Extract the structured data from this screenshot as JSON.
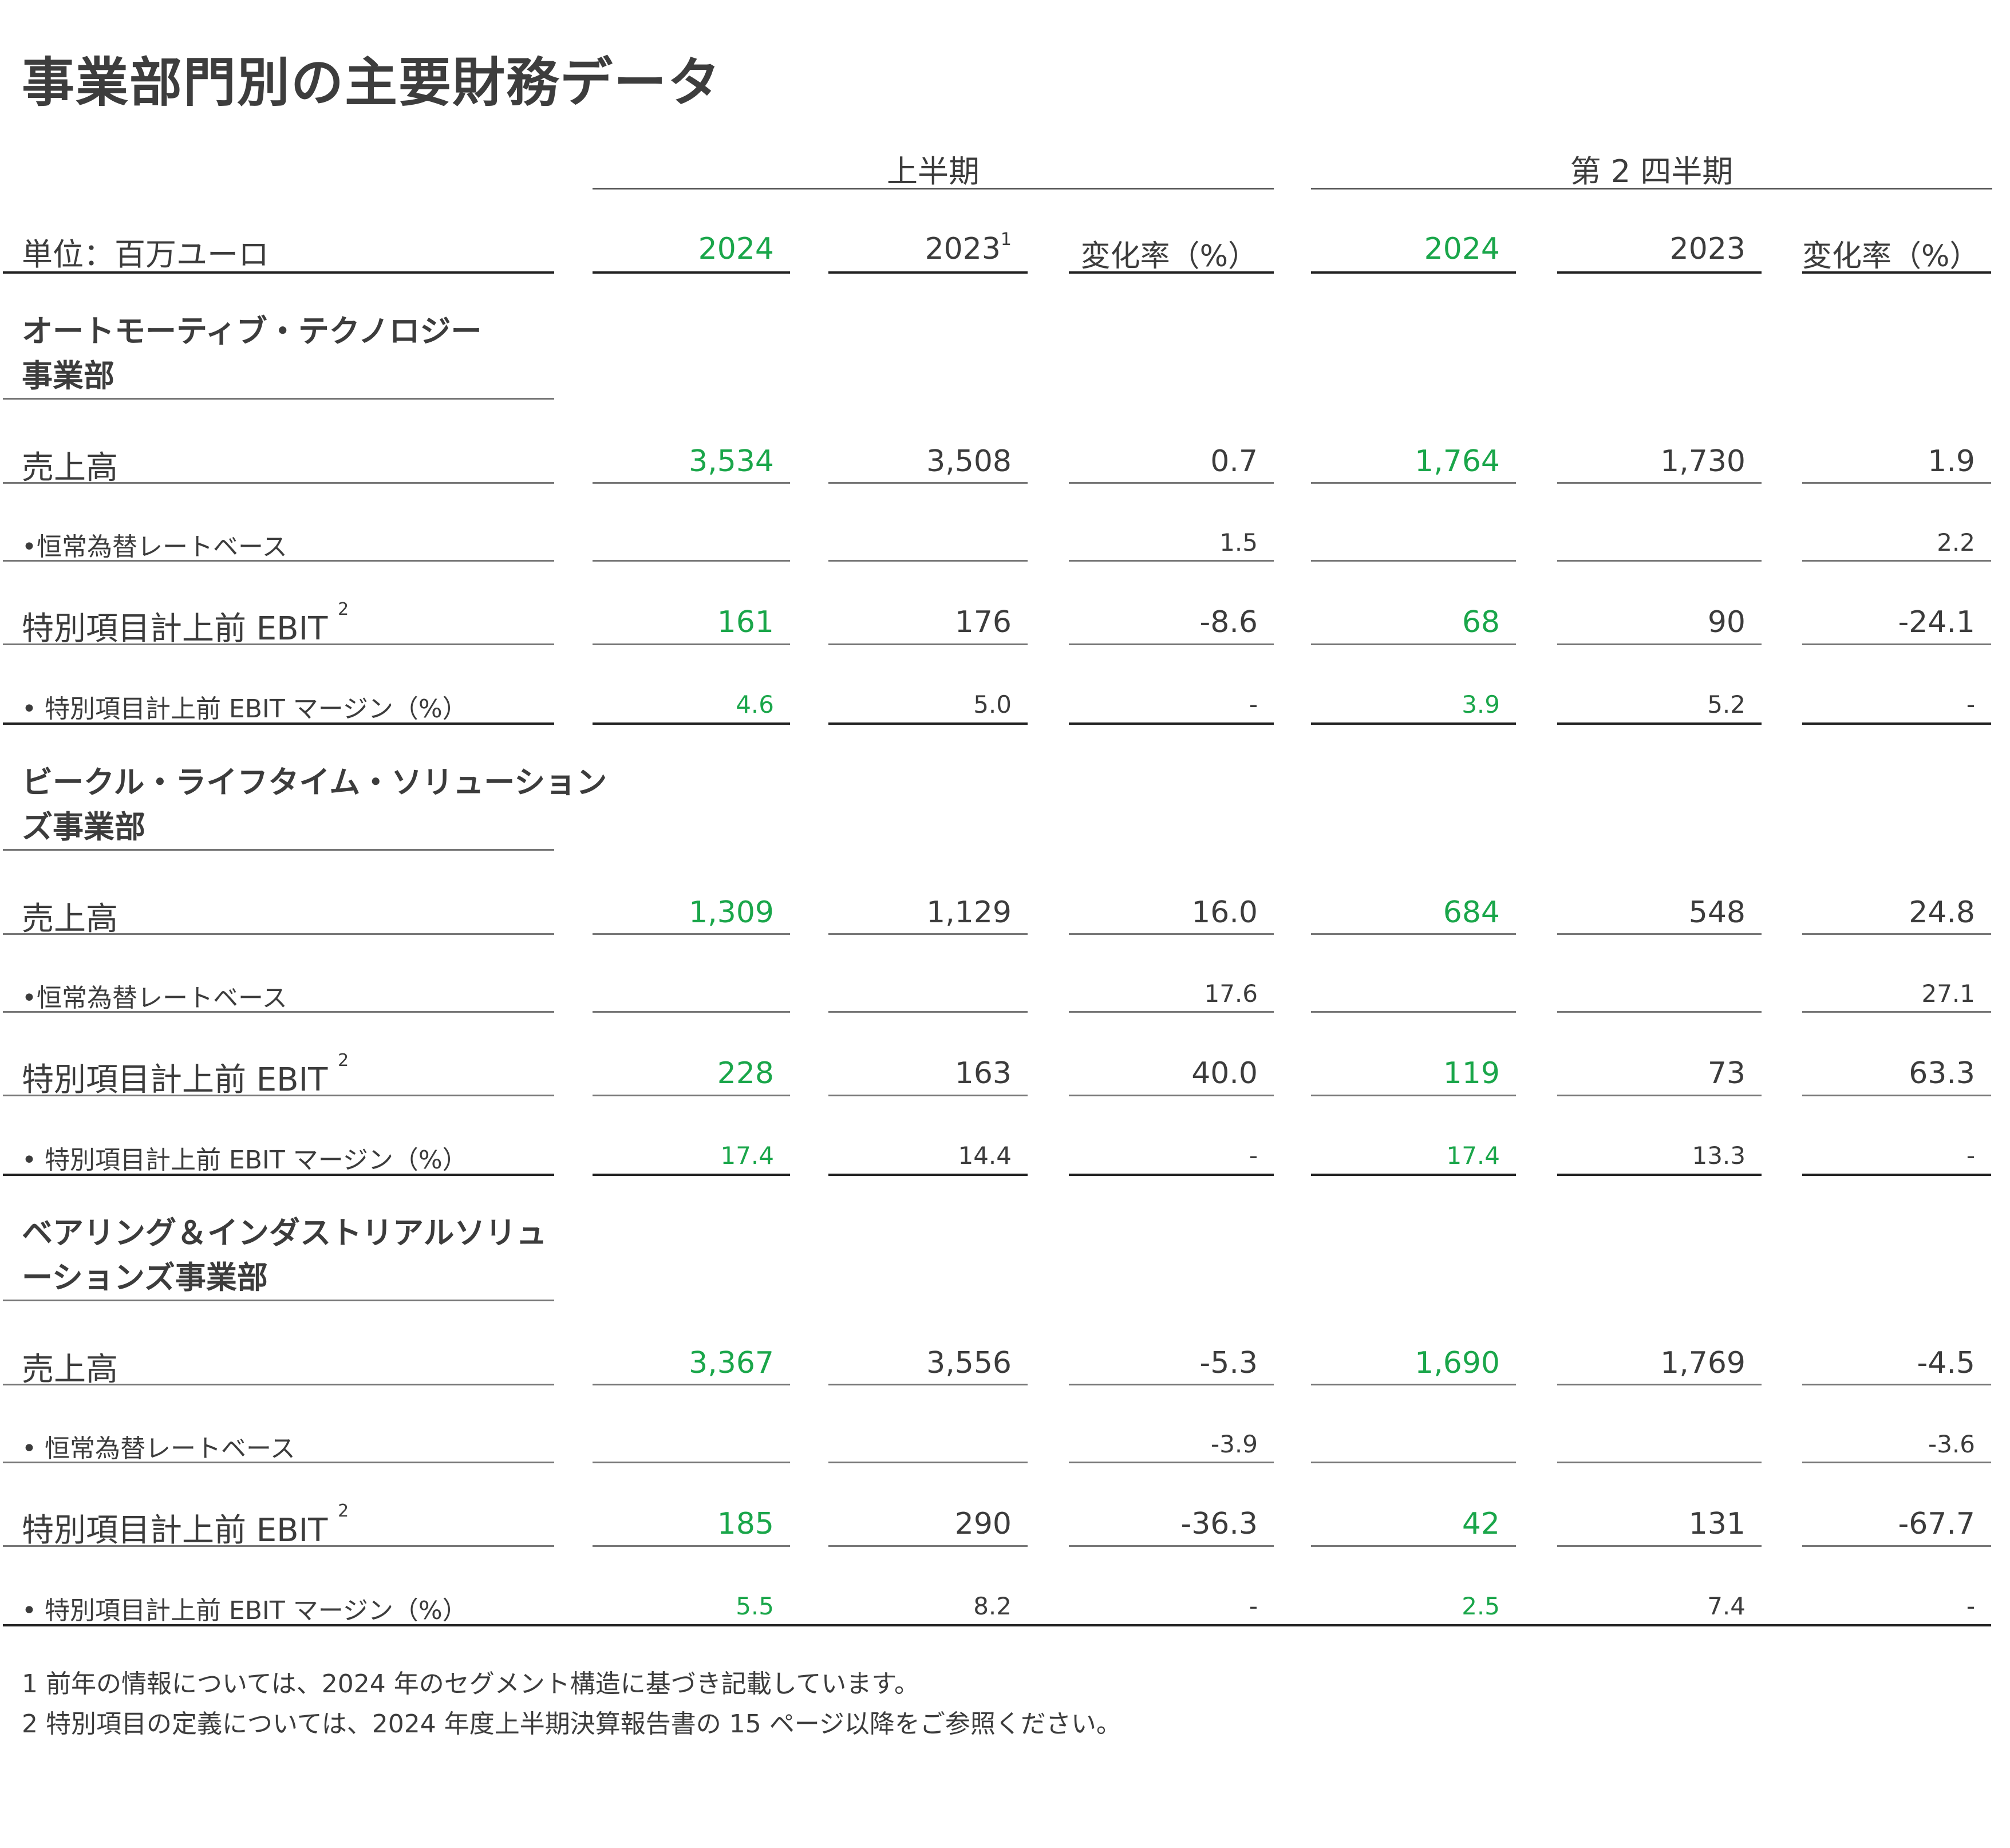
{
  "title": "事業部門別の主要財務データ",
  "headers": {
    "group1": "上半期",
    "group2": "第 2 四半期",
    "unit": "単位：百万ユーロ",
    "cols": [
      {
        "label": "2024",
        "sup": ""
      },
      {
        "label": "2023",
        "sup": "1"
      },
      {
        "label": "変化率（%）",
        "sup": ""
      },
      {
        "label": "2024",
        "sup": ""
      },
      {
        "label": "2023",
        "sup": ""
      },
      {
        "label": "変化率（%）",
        "sup": ""
      }
    ]
  },
  "sections": [
    {
      "title_lines": [
        "オートモーティブ・テクノロジー",
        "事業部"
      ],
      "rows": [
        {
          "label": "売上高",
          "sup": "",
          "size": "big",
          "values": [
            "3,534",
            "3,508",
            "0.7",
            "1,764",
            "1,730",
            "1.9"
          ]
        },
        {
          "label": "•恒常為替レートベース",
          "sup": "",
          "size": "small",
          "values": [
            "",
            "",
            "1.5",
            "",
            "",
            "2.2"
          ]
        },
        {
          "label": "特別項目計上前 EBIT ",
          "sup": "2",
          "size": "big",
          "values": [
            "161",
            "176",
            "-8.6",
            "68",
            "90",
            "-24.1"
          ]
        },
        {
          "label": "• 特別項目計上前 EBIT マージン（%）",
          "sup": "",
          "size": "small",
          "values": [
            "4.6",
            "5.0",
            "-",
            "3.9",
            "5.2",
            "-"
          ]
        }
      ]
    },
    {
      "title_lines": [
        "ビークル・ライフタイム・ソリューション",
        "ズ事業部"
      ],
      "rows": [
        {
          "label": "売上高",
          "sup": "",
          "size": "big",
          "values": [
            "1,309",
            "1,129",
            "16.0",
            "684",
            "548",
            "24.8"
          ]
        },
        {
          "label": "•恒常為替レートベース",
          "sup": "",
          "size": "small",
          "values": [
            "",
            "",
            "17.6",
            "",
            "",
            "27.1"
          ]
        },
        {
          "label": "特別項目計上前 EBIT ",
          "sup": "2",
          "size": "big",
          "values": [
            "228",
            "163",
            "40.0",
            "119",
            "73",
            "63.3"
          ]
        },
        {
          "label": "• 特別項目計上前 EBIT マージン（%）",
          "sup": "",
          "size": "small",
          "values": [
            "17.4",
            "14.4",
            "-",
            "17.4",
            "13.3",
            "-"
          ]
        }
      ]
    },
    {
      "title_lines": [
        "ベアリング＆インダストリアルソリュ",
        "ーションズ事業部"
      ],
      "rows": [
        {
          "label": "売上高",
          "sup": "",
          "size": "big",
          "values": [
            "3,367",
            "3,556",
            "-5.3",
            "1,690",
            "1,769",
            "-4.5"
          ]
        },
        {
          "label": "• 恒常為替レートベース",
          "sup": "",
          "size": "small",
          "values": [
            "",
            "",
            "-3.9",
            "",
            "",
            "-3.6"
          ]
        },
        {
          "label": "特別項目計上前 EBIT ",
          "sup": "2",
          "size": "big",
          "values": [
            "185",
            "290",
            "-36.3",
            "42",
            "131",
            "-67.7"
          ]
        },
        {
          "label": "• 特別項目計上前 EBIT マージン（%）",
          "sup": "",
          "size": "small",
          "values": [
            "5.5",
            "8.2",
            "-",
            "2.5",
            "7.4",
            "-"
          ]
        }
      ]
    }
  ],
  "footnotes": [
    "1 前年の情報については、2024 年のセグメント構造に基づき記載しています。",
    "2 特別項目の定義については、2024 年度上半期決算報告書の 15 ページ以降をご参照ください。"
  ],
  "colors": {
    "highlight": "#1aa64a",
    "text": "#3c3c3c"
  }
}
